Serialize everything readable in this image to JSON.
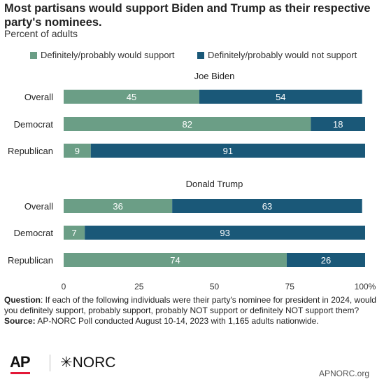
{
  "title": "Most partisans would support Biden and Trump as their respective party's nominees.",
  "subtitle": "Percent of adults",
  "colors": {
    "support": "#6b9e86",
    "not_support": "#1a5878",
    "axis": "#666666",
    "label_text": "#ffffff"
  },
  "chart_data": {
    "type": "bar",
    "orientation": "horizontal",
    "stacked": true,
    "xlim": [
      0,
      100
    ],
    "x_ticks": [
      "0",
      "25",
      "50",
      "75",
      "100%"
    ],
    "legend": {
      "placement": "top",
      "entries": [
        "Definitely/probably would support",
        "Definitely/probably would not support"
      ]
    },
    "series_names": [
      "Definitely/probably would support",
      "Definitely/probably would not support"
    ],
    "panels": [
      {
        "title": "Joe Biden",
        "rows": [
          {
            "label": "Overall",
            "values": [
              45,
              54
            ]
          },
          {
            "label": "Democrat",
            "values": [
              82,
              18
            ]
          },
          {
            "label": "Republican",
            "values": [
              9,
              91
            ]
          }
        ]
      },
      {
        "title": "Donald Trump",
        "rows": [
          {
            "label": "Overall",
            "values": [
              36,
              63
            ]
          },
          {
            "label": "Democrat",
            "values": [
              7,
              93
            ]
          },
          {
            "label": "Republican",
            "values": [
              74,
              26
            ]
          }
        ]
      }
    ]
  },
  "footnote": {
    "question_label": "Question",
    "question_text": ": If each of the following individuals were their party's nominee for president in 2024, would you definitely support, probably support, probably NOT support or definitely NOT support them?",
    "source_label": "Source:",
    "source_text": " AP-NORC Poll conducted August 10-14, 2023 with 1,165 adults nationwide."
  },
  "logos": {
    "ap": "AP",
    "norc": "✳NORC"
  },
  "site": "APNORC.org"
}
